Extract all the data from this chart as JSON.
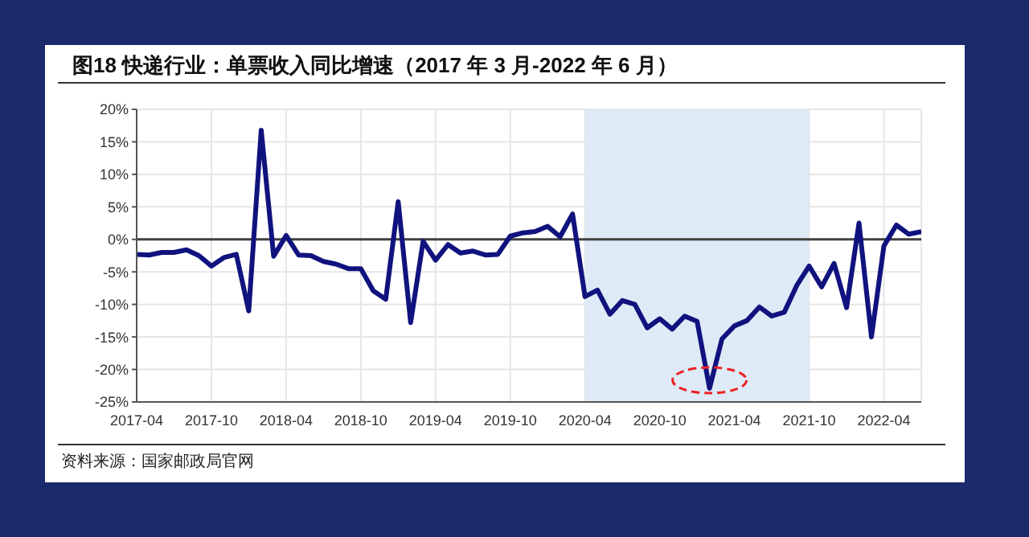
{
  "chart_data": {
    "type": "line",
    "title": "图18 快递行业：单票收入同比增速（2017 年 3 月-2022 年 6 月）",
    "categories": [
      "2017-04",
      null,
      null,
      null,
      null,
      null,
      "2017-10",
      null,
      null,
      null,
      null,
      null,
      "2018-04",
      null,
      null,
      null,
      null,
      null,
      "2018-10",
      null,
      null,
      null,
      null,
      null,
      "2019-04",
      null,
      null,
      null,
      null,
      null,
      "2019-10",
      null,
      null,
      null,
      null,
      null,
      "2020-04",
      null,
      null,
      null,
      null,
      null,
      "2020-10",
      null,
      null,
      null,
      null,
      null,
      "2021-04",
      null,
      null,
      null,
      null,
      null,
      "2021-10",
      null,
      null,
      null,
      null,
      null,
      "2022-04",
      null,
      null,
      null
    ],
    "series": [
      {
        "color": "#10137e",
        "values": [
          -2.3,
          -2.4,
          -2.0,
          -2.0,
          -1.6,
          -2.5,
          -4.1,
          -2.8,
          -2.3,
          -11.0,
          16.8,
          -2.6,
          0.6,
          -2.4,
          -2.5,
          -3.4,
          -3.8,
          -4.5,
          -4.5,
          -7.9,
          -9.2,
          5.8,
          -12.8,
          -0.3,
          -3.2,
          -0.8,
          -2.1,
          -1.8,
          -2.4,
          -2.3,
          0.5,
          1.0,
          1.2,
          2.0,
          0.4,
          3.9,
          -8.8,
          -7.8,
          -11.5,
          -9.4,
          -10.0,
          -13.6,
          -12.2,
          -13.8,
          -11.8,
          -12.6,
          -22.9,
          -15.3,
          -13.3,
          -12.5,
          -10.4,
          -11.8,
          -11.2,
          -7.1,
          -4.1,
          -7.3,
          -3.7,
          -10.5,
          2.5,
          -15.0,
          -1.0,
          2.2,
          0.8,
          1.2
        ]
      }
    ],
    "ylim": [
      -25,
      20
    ],
    "yticks": [
      {
        "value": -25,
        "label": "-25%"
      },
      {
        "value": -20,
        "label": "-20%"
      },
      {
        "value": -15,
        "label": "-15%"
      },
      {
        "value": -10,
        "label": "-10%"
      },
      {
        "value": -5,
        "label": "-5%"
      },
      {
        "value": 0,
        "label": "0%"
      },
      {
        "value": 5,
        "label": "5%"
      },
      {
        "value": 10,
        "label": "10%"
      },
      {
        "value": 15,
        "label": "15%"
      },
      {
        "value": 20,
        "label": "20%"
      }
    ],
    "bands": [
      {
        "axis": "x",
        "from": "2020-04",
        "to": "2021-10",
        "color": "#deeaf6"
      }
    ],
    "ref_lines": [
      {
        "axis": "y",
        "value": 0,
        "color": "#404040"
      }
    ],
    "grid": true,
    "marker": "none",
    "line_style": "solid",
    "annotations": [
      "资料来源：国家邮政局官网"
    ]
  }
}
